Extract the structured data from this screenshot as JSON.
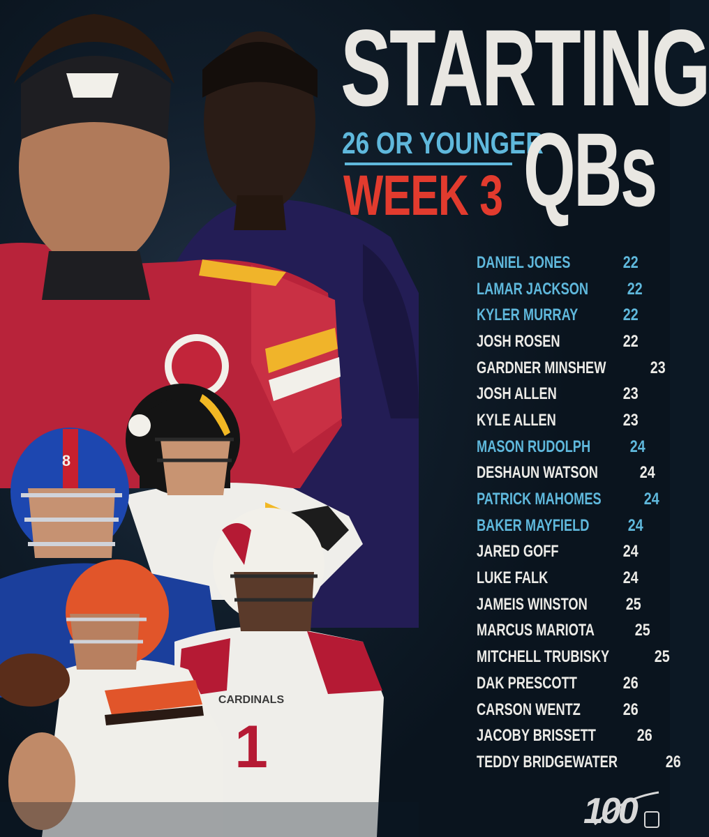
{
  "title": {
    "line1": "STARTING",
    "qbs": "QBs",
    "age_label": "26 OR YOUNGER",
    "week_label": "WEEK 3"
  },
  "roster": [
    {
      "name": "DANIEL JONES",
      "age": "22",
      "highlight": true
    },
    {
      "name": "LAMAR JACKSON",
      "age": "22",
      "highlight": true
    },
    {
      "name": "KYLER MURRAY",
      "age": "22",
      "highlight": true
    },
    {
      "name": "JOSH ROSEN",
      "age": "22",
      "highlight": false
    },
    {
      "name": "GARDNER MINSHEW",
      "age": "23",
      "highlight": false
    },
    {
      "name": "JOSH ALLEN",
      "age": "23",
      "highlight": false
    },
    {
      "name": "KYLE ALLEN",
      "age": "23",
      "highlight": false
    },
    {
      "name": "MASON RUDOLPH",
      "age": "24",
      "highlight": true
    },
    {
      "name": "DESHAUN WATSON",
      "age": "24",
      "highlight": false
    },
    {
      "name": "PATRICK MAHOMES",
      "age": "24",
      "highlight": true
    },
    {
      "name": "BAKER MAYFIELD",
      "age": "24",
      "highlight": true
    },
    {
      "name": "JARED GOFF",
      "age": "24",
      "highlight": false
    },
    {
      "name": "LUKE FALK",
      "age": "24",
      "highlight": false
    },
    {
      "name": "JAMEIS WINSTON",
      "age": "25",
      "highlight": false
    },
    {
      "name": "MARCUS MARIOTA",
      "age": "25",
      "highlight": false
    },
    {
      "name": "MITCHELL TRUBISKY",
      "age": "25",
      "highlight": false
    },
    {
      "name": "DAK PRESCOTT",
      "age": "26",
      "highlight": false
    },
    {
      "name": "CARSON WENTZ",
      "age": "26",
      "highlight": false
    },
    {
      "name": "JACOBY BRISSETT",
      "age": "26",
      "highlight": false
    },
    {
      "name": "TEDDY BRIDGEWATER",
      "age": "26",
      "highlight": false
    }
  ],
  "jersey_text": {
    "cardinals": "CARDINALS",
    "cardinals_number": "1",
    "giants_number": "8"
  },
  "colors": {
    "background": "#0c1824",
    "title_white": "#e9e7e2",
    "accent_blue": "#5fb8dc",
    "accent_red": "#e23b2e",
    "chiefs_red": "#c2253a",
    "ravens_purple": "#2a2262",
    "giants_blue": "#1b3f9c",
    "steelers_gold": "#f2b824",
    "browns_orange": "#e1552a",
    "cardinals_red": "#b51a34"
  },
  "icons": {
    "logo": "nfl-100-logo"
  }
}
